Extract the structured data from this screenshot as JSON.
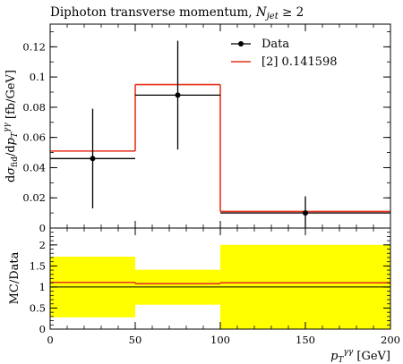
{
  "title": {
    "text": "Diphoton transverse momentum, ",
    "italic": "N",
    "sub": "jet",
    "cond": " ≥ 2"
  },
  "chart_data": [
    {
      "type": "histogram",
      "panel": "main",
      "ylabel": "dσ_fid / dp_T^γγ [fb/GeV]",
      "xlim": [
        0,
        200
      ],
      "ylim": [
        0,
        0.135
      ],
      "yticks": [
        0,
        0.02,
        0.04,
        0.06,
        0.08,
        0.1,
        0.12
      ],
      "ytick_labels": [
        "0",
        "0.02",
        "0.04",
        "0.06",
        "0.08",
        "0.1",
        "0.12"
      ],
      "legend_position": "top-right",
      "series": [
        {
          "name": "Data",
          "kind": "points",
          "color": "#000000",
          "bins": [
            [
              0,
              50
            ],
            [
              50,
              100
            ],
            [
              100,
              200
            ]
          ],
          "x": [
            25,
            75,
            150
          ],
          "y": [
            0.046,
            0.088,
            0.01
          ],
          "yerr_low": [
            0.033,
            0.036,
            0.01
          ],
          "yerr_high": [
            0.033,
            0.036,
            0.011
          ]
        },
        {
          "name": "[2] 0.141598",
          "kind": "step",
          "color": "#e8321e",
          "bins": [
            [
              0,
              50
            ],
            [
              50,
              100
            ],
            [
              100,
              200
            ]
          ],
          "y": [
            0.051,
            0.095,
            0.011
          ]
        }
      ]
    },
    {
      "type": "histogram",
      "panel": "ratio",
      "ylabel": "MC/Data",
      "xlabel": "p_T^γγ [GeV]",
      "xlim": [
        0,
        200
      ],
      "ylim": [
        0,
        2.4
      ],
      "yticks": [
        0,
        0.5,
        1,
        1.5,
        2
      ],
      "ytick_labels": [
        "0",
        "0.5",
        "1",
        "1.5",
        "2"
      ],
      "xticks": [
        0,
        50,
        100,
        150,
        200
      ],
      "xtick_labels": [
        "0",
        "50",
        "100",
        "150",
        "200"
      ],
      "band_color": "#ffff00",
      "band": {
        "bins": [
          [
            0,
            50
          ],
          [
            50,
            100
          ],
          [
            100,
            200
          ]
        ],
        "low": [
          0.28,
          0.58,
          0.0
        ],
        "high": [
          1.72,
          1.41,
          2.0
        ]
      },
      "reference_line": 1.0,
      "mc_ratio": {
        "color": "#e8321e",
        "bins": [
          [
            0,
            50
          ],
          [
            50,
            100
          ],
          [
            100,
            200
          ]
        ],
        "y": [
          1.11,
          1.08,
          1.1
        ]
      }
    }
  ]
}
